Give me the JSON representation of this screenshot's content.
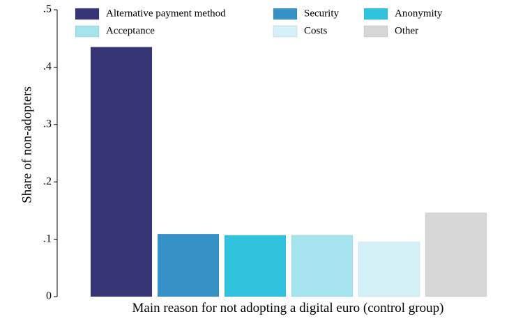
{
  "chart_data": {
    "type": "bar",
    "xlabel": "Main reason for not adopting a digital euro (control group)",
    "ylabel": "Share of non-adopters",
    "ylim": [
      0,
      0.5
    ],
    "yticks": [
      0,
      0.1,
      0.2,
      0.3,
      0.4,
      0.5
    ],
    "ytick_labels": [
      "0",
      ".1",
      ".2",
      ".3",
      ".4",
      ".5"
    ],
    "grid": false,
    "legend_position": "top",
    "series": [
      {
        "name": "Alternative payment method",
        "value": 0.435,
        "color": "#363677"
      },
      {
        "name": "Security",
        "value": 0.109,
        "color": "#3591c6"
      },
      {
        "name": "Anonymity",
        "value": 0.107,
        "color": "#31c3dd"
      },
      {
        "name": "Acceptance",
        "value": 0.107,
        "color": "#a5e3ef"
      },
      {
        "name": "Costs",
        "value": 0.095,
        "color": "#d3f1f7"
      },
      {
        "name": "Other",
        "value": 0.146,
        "color": "#d7d7d7"
      }
    ]
  }
}
